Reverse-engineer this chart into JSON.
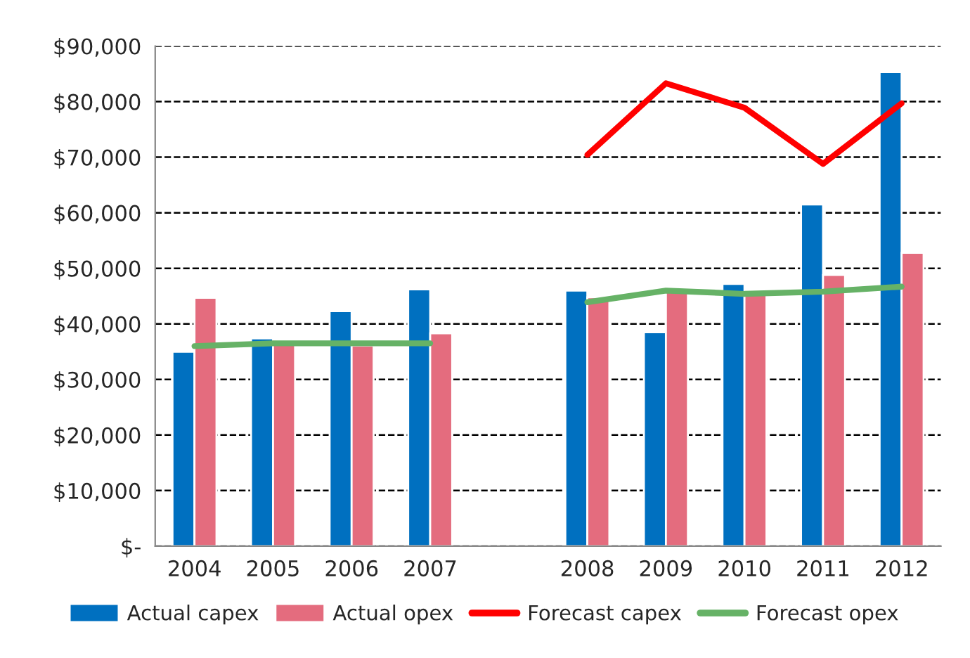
{
  "chart_data": {
    "type": "bar",
    "categories": [
      "2004",
      "2005",
      "2006",
      "2007",
      null,
      "2008",
      "2009",
      "2010",
      "2011",
      "2012"
    ],
    "series": [
      {
        "name": "Actual capex",
        "color": "#0070c0",
        "values": [
          35000,
          37400,
          42300,
          46200,
          null,
          46000,
          38500,
          47200,
          61500,
          85300
        ]
      },
      {
        "name": "Actual opex",
        "color": "#e46c7e",
        "values": [
          44700,
          36800,
          36100,
          38300,
          null,
          44800,
          45800,
          45400,
          48800,
          52800
        ]
      },
      {
        "name": "Forecast capex",
        "type": "line",
        "color": "#ff0000",
        "values": [
          null,
          null,
          null,
          null,
          null,
          70400,
          83300,
          78900,
          68800,
          79700
        ]
      },
      {
        "name": "Forecast opex",
        "type": "line",
        "color": "#66b266",
        "values": [
          36000,
          36500,
          36500,
          36500,
          null,
          43900,
          46000,
          45400,
          45800,
          46700
        ]
      }
    ],
    "ylim": [
      0,
      90000
    ],
    "yticks": [
      {
        "value": 0,
        "label": "$-"
      },
      {
        "value": 10000,
        "label": "$10,000"
      },
      {
        "value": 20000,
        "label": "$20,000"
      },
      {
        "value": 30000,
        "label": "$30,000"
      },
      {
        "value": 40000,
        "label": "$40,000"
      },
      {
        "value": 50000,
        "label": "$50,000"
      },
      {
        "value": 60000,
        "label": "$60,000"
      },
      {
        "value": 70000,
        "label": "$70,000"
      },
      {
        "value": 80000,
        "label": "$80,000"
      },
      {
        "value": 90000,
        "label": "$90,000"
      }
    ],
    "grid": "y",
    "legend": "bottom",
    "marker": "none",
    "line_style": "solid"
  }
}
